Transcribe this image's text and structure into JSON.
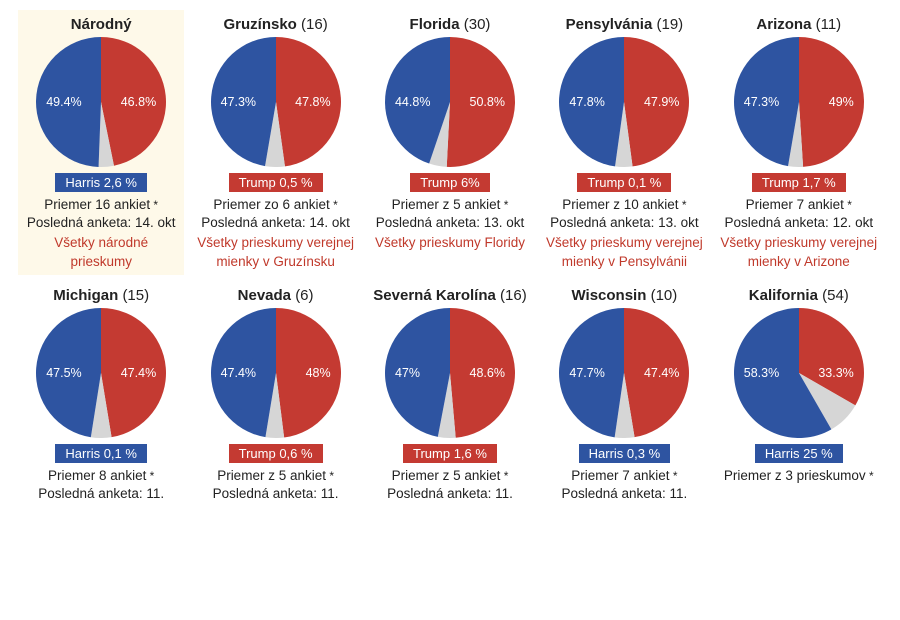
{
  "colors": {
    "blue": "#2e54a1",
    "red": "#c43a32",
    "grey": "#d6d6d6",
    "link": "#c0392b",
    "highlight_bg": "#fef9e9",
    "text": "#222222"
  },
  "pie_style": {
    "radius": 65,
    "label_fontsize": 12.5,
    "label_color": "#ffffff",
    "start_angle_deg": -90
  },
  "cards": [
    {
      "id": "nat",
      "title": "Národný",
      "ev": null,
      "highlighted": true,
      "blue_pct": 49.4,
      "red_pct": 46.8,
      "blue_label": "49.4%",
      "red_label": "46.8%",
      "lead_side": "blue",
      "lead_text": "Harris 2,6 %",
      "meta1": "Priemer 16 ankiet",
      "meta2": "Posledná anketa: 14. okt",
      "link": "Všetky národné prieskumy"
    },
    {
      "id": "ga",
      "title": "Gruzínsko",
      "ev": "(16)",
      "highlighted": false,
      "blue_pct": 47.3,
      "red_pct": 47.8,
      "blue_label": "47.3%",
      "red_label": "47.8%",
      "lead_side": "red",
      "lead_text": "Trump 0,5 %",
      "meta1": "Priemer zo 6 ankiet",
      "meta2": "Posledná anketa: 14. okt",
      "link": "Všetky prieskumy verejnej mienky v Gruzínsku"
    },
    {
      "id": "fl",
      "title": "Florida",
      "ev": "(30)",
      "highlighted": false,
      "blue_pct": 44.8,
      "red_pct": 50.8,
      "blue_label": "44.8%",
      "red_label": "50.8%",
      "lead_side": "red",
      "lead_text": "Trump 6%",
      "meta1": "Priemer z 5 ankiet",
      "meta2": "Posledná anketa: 13. okt",
      "link": "Všetky prieskumy Floridy"
    },
    {
      "id": "pa",
      "title": "Pensylvánia",
      "ev": "(19)",
      "highlighted": false,
      "blue_pct": 47.8,
      "red_pct": 47.9,
      "blue_label": "47.8%",
      "red_label": "47.9%",
      "lead_side": "red",
      "lead_text": "Trump 0,1 %",
      "meta1": "Priemer z 10 ankiet",
      "meta2": "Posledná anketa: 13. okt",
      "link": "Všetky prieskumy verejnej mienky v Pensylvánii"
    },
    {
      "id": "az",
      "title": "Arizona",
      "ev": "(11)",
      "highlighted": false,
      "blue_pct": 47.3,
      "red_pct": 49.0,
      "blue_label": "47.3%",
      "red_label": "49%",
      "lead_side": "red",
      "lead_text": "Trump 1,7 %",
      "meta1": "Priemer 7 ankiet",
      "meta2": "Posledná anketa: 12. okt",
      "link": "Všetky prieskumy verejnej mienky v Arizone"
    },
    {
      "id": "mi",
      "title": "Michigan",
      "ev": "(15)",
      "highlighted": false,
      "blue_pct": 47.5,
      "red_pct": 47.4,
      "blue_label": "47.5%",
      "red_label": "47.4%",
      "lead_side": "blue",
      "lead_text": "Harris 0,1 %",
      "meta1": "Priemer 8 ankiet",
      "meta2": "Posledná anketa: 11.",
      "link": null
    },
    {
      "id": "nv",
      "title": "Nevada",
      "ev": "(6)",
      "highlighted": false,
      "blue_pct": 47.4,
      "red_pct": 48.0,
      "blue_label": "47.4%",
      "red_label": "48%",
      "lead_side": "red",
      "lead_text": "Trump 0,6 %",
      "meta1": "Priemer z 5 ankiet",
      "meta2": "Posledná anketa: 11.",
      "link": null
    },
    {
      "id": "nc",
      "title": "Severná Karolína",
      "ev": "(16)",
      "highlighted": false,
      "blue_pct": 47.0,
      "red_pct": 48.6,
      "blue_label": "47%",
      "red_label": "48.6%",
      "lead_side": "red",
      "lead_text": "Trump 1,6 %",
      "meta1": "Priemer z 5 ankiet",
      "meta2": "Posledná anketa: 11.",
      "link": null
    },
    {
      "id": "wi",
      "title": "Wisconsin",
      "ev": "(10)",
      "highlighted": false,
      "blue_pct": 47.7,
      "red_pct": 47.4,
      "blue_label": "47.7%",
      "red_label": "47.4%",
      "lead_side": "blue",
      "lead_text": "Harris 0,3 %",
      "meta1": "Priemer 7 ankiet",
      "meta2": "Posledná anketa: 11.",
      "link": null
    },
    {
      "id": "ca",
      "title": "Kalifornia",
      "ev": "(54)",
      "highlighted": false,
      "blue_pct": 58.3,
      "red_pct": 33.3,
      "blue_label": "58.3%",
      "red_label": "33.3%",
      "lead_side": "blue",
      "lead_text": "Harris 25 %",
      "meta1": "Priemer z 3 prieskumov",
      "meta2": "",
      "link": null
    }
  ]
}
